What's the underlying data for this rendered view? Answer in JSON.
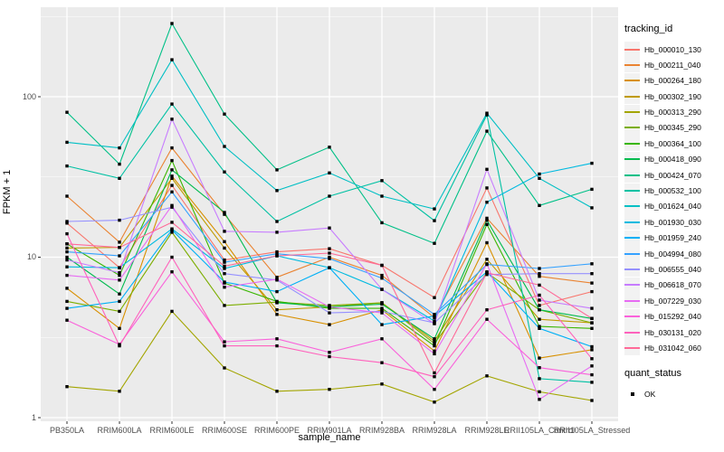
{
  "chart_data": {
    "type": "line",
    "title": "",
    "xlabel": "sample_name",
    "ylabel": "FPKM + 1",
    "y_scale": "log10",
    "y_ticks": [
      1,
      10,
      100
    ],
    "y_tick_labels": [
      "1",
      "10",
      "100"
    ],
    "y_minor_ticks": [
      3.162,
      31.62,
      316.2
    ],
    "ylim": [
      1,
      352
    ],
    "grid": "on",
    "legend_position": "right",
    "panel_bg": "#EBEBEB",
    "grid_color": "#FFFFFF",
    "tick_color": "#333333",
    "tick_text_color": "#4D4D4D",
    "point_marker": "filled-square",
    "point_color": "#000000",
    "legend_title": "tracking_id",
    "quant_legend_title": "quant_status",
    "quant_legend_items": [
      {
        "label": "OK",
        "marker": "filled-square",
        "color": "#000000"
      }
    ],
    "categories": [
      "PB350LA",
      "RRIM600LA",
      "RRIM600LE",
      "RRIM600SE",
      "RRIM600PE",
      "RRIM901LA",
      "RRIM928BA",
      "RRIM928LA",
      "RRIM928LE",
      "RRII105LA_Control",
      "RRII105LA_Stressed"
    ],
    "series": [
      {
        "name": "Hb_000010_130",
        "color": "#F8766D",
        "values": [
          16.3,
          8.6,
          28,
          9.6,
          10.8,
          11.3,
          8.9,
          5.6,
          27,
          5.0,
          6.1
        ]
      },
      {
        "name": "Hb_000211_040",
        "color": "#EA8331",
        "values": [
          24,
          12.4,
          48,
          18.5,
          7.5,
          10.0,
          7.7,
          4.2,
          17.5,
          7.6,
          6.9
        ]
      },
      {
        "name": "Hb_000264_180",
        "color": "#D89000",
        "values": [
          6.4,
          3.6,
          32,
          12.5,
          4.4,
          3.8,
          4.7,
          2.6,
          12.3,
          2.35,
          2.65
        ]
      },
      {
        "name": "Hb_000302_190",
        "color": "#C09B00",
        "values": [
          11.4,
          11.5,
          31,
          11.4,
          4.7,
          4.9,
          5.2,
          3.0,
          9.7,
          4.1,
          3.9
        ]
      },
      {
        "name": "Hb_000313_290",
        "color": "#A3A500",
        "values": [
          1.56,
          1.46,
          4.6,
          2.04,
          1.46,
          1.5,
          1.62,
          1.25,
          1.82,
          1.45,
          1.28
        ]
      },
      {
        "name": "Hb_000345_290",
        "color": "#7CAE00",
        "values": [
          5.3,
          4.6,
          14.3,
          5.0,
          5.25,
          5.0,
          5.2,
          2.9,
          8.0,
          4.7,
          3.9
        ]
      },
      {
        "name": "Hb_000364_100",
        "color": "#39B600",
        "values": [
          12.1,
          7.7,
          40,
          6.9,
          5.3,
          4.8,
          4.8,
          2.8,
          16,
          3.7,
          3.6
        ]
      },
      {
        "name": "Hb_000418_090",
        "color": "#00BB4E",
        "values": [
          10,
          5.9,
          35,
          19,
          5.2,
          4.9,
          5.1,
          3.1,
          17,
          4.7,
          4.15
        ]
      },
      {
        "name": "Hb_000424_070",
        "color": "#00C087",
        "values": [
          80,
          38,
          286,
          78,
          35,
          48.5,
          16.4,
          12.2,
          61,
          21,
          26.5
        ]
      },
      {
        "name": "Hb_000532_100",
        "color": "#00C1A3",
        "values": [
          37,
          31,
          90,
          34,
          16.7,
          24,
          30,
          16.9,
          77,
          1.75,
          1.66
        ]
      },
      {
        "name": "Hb_001624_040",
        "color": "#00BFC4",
        "values": [
          52,
          48,
          170,
          49,
          26,
          33.5,
          24,
          20,
          79,
          31,
          20.3
        ]
      },
      {
        "name": "Hb_001930_030",
        "color": "#00BAE0",
        "values": [
          8.7,
          8.6,
          15,
          8.5,
          10.2,
          8.6,
          6.3,
          4.0,
          22,
          33,
          38.5
        ]
      },
      {
        "name": "Hb_001959_240",
        "color": "#00B0F6",
        "values": [
          4.8,
          5.3,
          14.8,
          7.0,
          6.1,
          8.6,
          3.8,
          4.3,
          8.1,
          3.6,
          2.77
        ]
      },
      {
        "name": "Hb_004994_080",
        "color": "#35A2FF",
        "values": [
          10.8,
          10.2,
          25.5,
          9.3,
          10.5,
          9.8,
          7.4,
          4.4,
          9.0,
          8.5,
          9.1
        ]
      },
      {
        "name": "Hb_006555_040",
        "color": "#9590FF",
        "values": [
          16.7,
          17,
          20.5,
          7.9,
          7.2,
          4.5,
          4.6,
          3.9,
          7.8,
          7.9,
          7.9
        ]
      },
      {
        "name": "Hb_006618_070",
        "color": "#C77CFF",
        "values": [
          9.6,
          8.0,
          72.5,
          14.5,
          14.3,
          15.2,
          6.3,
          3.85,
          35.3,
          5.4,
          4.8
        ]
      },
      {
        "name": "Hb_007229_030",
        "color": "#E76BF3",
        "values": [
          7.7,
          7.2,
          21,
          6.5,
          7.3,
          4.9,
          4.5,
          2.5,
          9.1,
          1.3,
          2.1
        ]
      },
      {
        "name": "Hb_015292_040",
        "color": "#FA62DB",
        "values": [
          4.05,
          2.86,
          8.1,
          2.97,
          3.1,
          2.55,
          3.1,
          1.5,
          4.1,
          2.05,
          1.85
        ]
      },
      {
        "name": "Hb_030131_020",
        "color": "#FF62BC",
        "values": [
          14,
          2.8,
          10,
          2.8,
          2.8,
          2.4,
          2.2,
          1.8,
          4.7,
          5.8,
          2.33
        ]
      },
      {
        "name": "Hb_031042_060",
        "color": "#FF6A98",
        "values": [
          12.1,
          11.5,
          16.5,
          8.8,
          10.2,
          10.6,
          8.9,
          1.9,
          8.0,
          6.7,
          4.15
        ]
      }
    ]
  }
}
